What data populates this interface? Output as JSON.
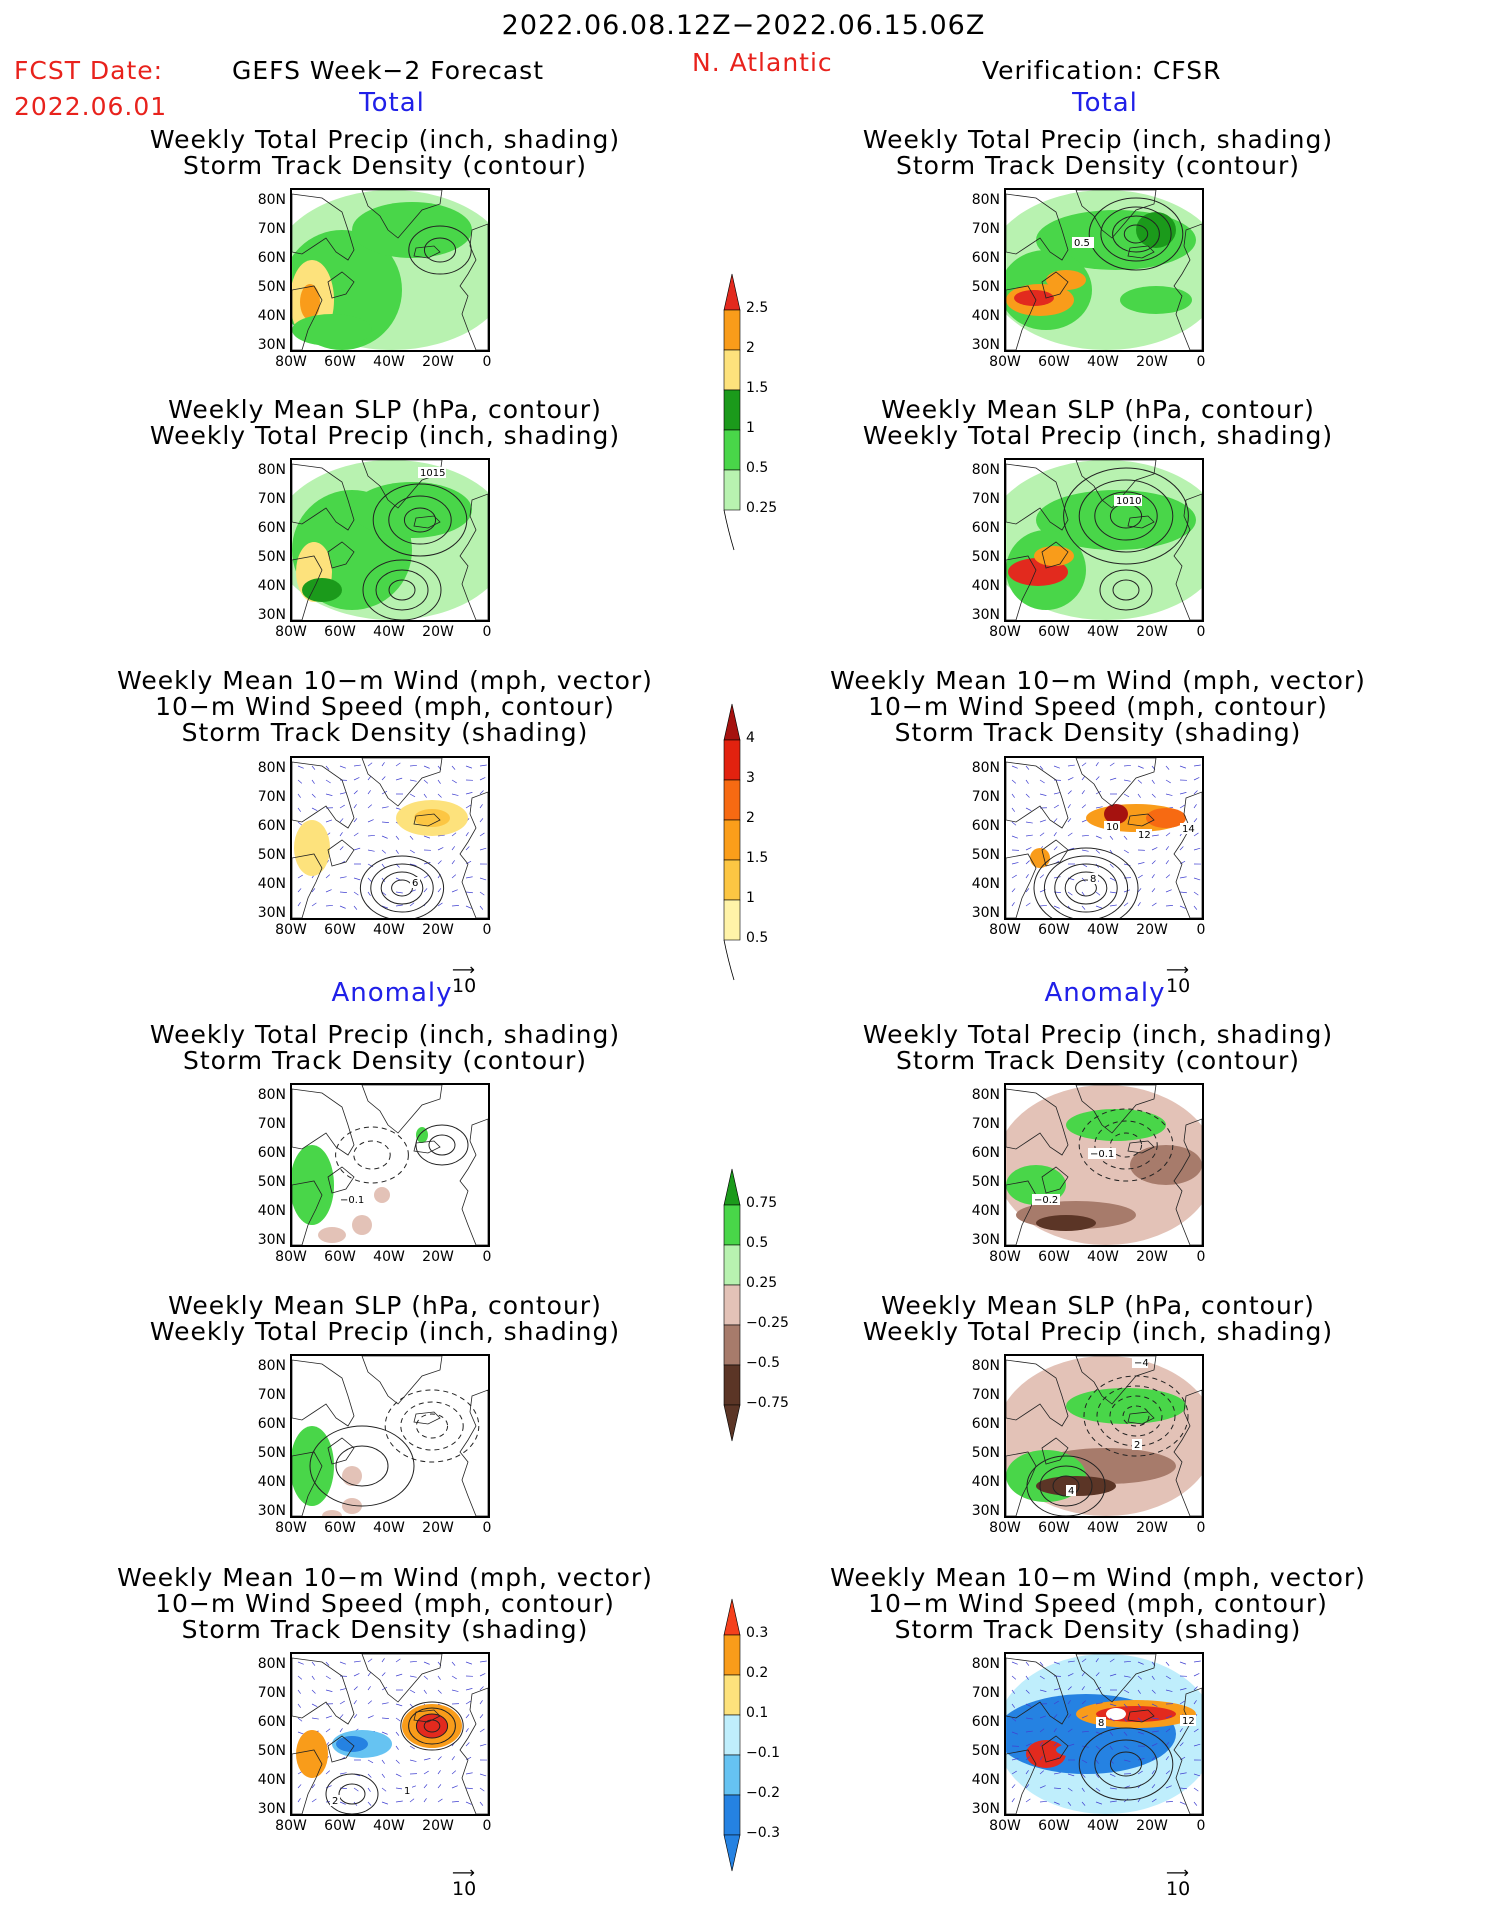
{
  "header": {
    "date_range": "2022.06.08.12Z−2022.06.15.06Z",
    "fcst_label": "FCST Date:",
    "fcst_date": "2022.06.01",
    "left_title": "GEFS Week−2 Forecast",
    "region": "N. Atlantic",
    "right_title": "Verification: CFSR"
  },
  "sections": {
    "total": "Total",
    "anomaly": "Anomaly"
  },
  "panel_titles": {
    "precip_track": [
      "Weekly Total Precip (inch, shading)",
      "Storm Track Density (contour)"
    ],
    "slp_precip": [
      "Weekly Mean SLP (hPa, contour)",
      "Weekly Total Precip (inch, shading)"
    ],
    "wind_track": [
      "Weekly Mean 10−m Wind (mph, vector)",
      "10−m Wind Speed (mph, contour)",
      "Storm Track Density (shading)"
    ]
  },
  "axes": {
    "lat_labels": [
      "80N",
      "70N",
      "60N",
      "50N",
      "40N",
      "30N"
    ],
    "lon_labels": [
      "80W",
      "60W",
      "40W",
      "20W",
      "0"
    ]
  },
  "vector_ref": "10",
  "contour_labels": {
    "fcst_slp_total": "1015",
    "obs_track_total": "0.5",
    "obs_slp_total": "1010",
    "fcst_wind_total": "6",
    "obs_wind_total_a": "10",
    "obs_wind_total_b": "12",
    "obs_wind_total_c": "14",
    "obs_wind_total_d": "8",
    "fcst_track_anom": "−0.1",
    "obs_track_anom_a": "−0.1",
    "obs_track_anom_b": "−0.2",
    "obs_slp_anom_a": "−4",
    "obs_slp_anom_b": "2",
    "obs_slp_anom_c": "4",
    "fcst_wind_anom_a": "1",
    "fcst_wind_anom_b": "2",
    "obs_wind_anom_a": "8",
    "obs_wind_anom_b": "12"
  },
  "colorbars": {
    "precip_total": {
      "labels": [
        "2.5",
        "2",
        "1.5",
        "1",
        "0.5",
        "0.25"
      ],
      "colors": [
        "#e22a1e",
        "#f99c1a",
        "#fde27c",
        "#1b9a1b",
        "#49d649",
        "#b8f2b0"
      ]
    },
    "track_total": {
      "labels": [
        "4",
        "3",
        "2",
        "1.5",
        "1",
        "0.5"
      ],
      "colors": [
        "#a5120f",
        "#e2220f",
        "#f76a12",
        "#fb9e1a",
        "#fcc643",
        "#fff3a8"
      ]
    },
    "precip_anom": {
      "labels": [
        "0.75",
        "0.5",
        "0.25",
        "−0.25",
        "−0.5",
        "−0.75"
      ],
      "colors": [
        "#1b9a1b",
        "#49d649",
        "#b8f2b0",
        "#e3c2b7",
        "#a77b6b",
        "#5b3526"
      ]
    },
    "track_anom": {
      "labels": [
        "0.3",
        "0.2",
        "0.1",
        "−0.1",
        "−0.2",
        "−0.3"
      ],
      "colors": [
        "#f5401c",
        "#f99c1a",
        "#fde27c",
        "#bfeefc",
        "#66c3f2",
        "#2582e2"
      ]
    }
  }
}
